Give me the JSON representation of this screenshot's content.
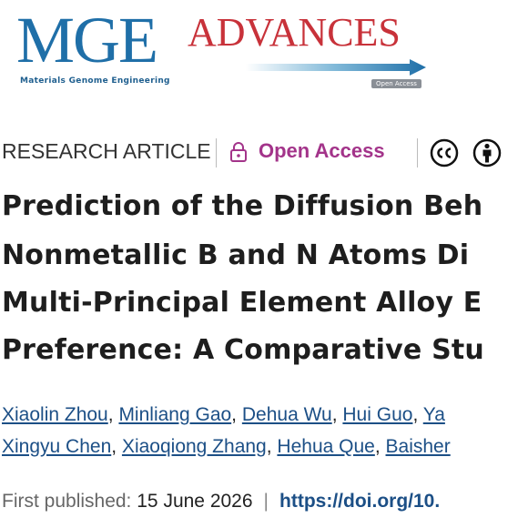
{
  "header": {
    "logo_main": "MGE",
    "logo_secondary": "ADVANCES",
    "logo_subtitle": "Materials Genome Engineering",
    "logo_badge": "Open Access"
  },
  "article": {
    "type": "RESEARCH ARTICLE",
    "access": "Open Access",
    "title_lines": [
      "Prediction of the Diffusion Beh",
      "Nonmetallic B and N Atoms Di",
      "Multi-Principal Element Alloy E",
      "Preference: A Comparative Stu"
    ],
    "author_separator": ",",
    "author_lines": [
      [
        "Xiaolin Zhou",
        "Minliang Gao",
        "Dehua Wu",
        "Hui Guo",
        "Ya"
      ],
      [
        "Xingyu Chen",
        "Xiaoqiong Zhang",
        "Hehua Que",
        "Baisher"
      ]
    ],
    "published_label": "First published:",
    "published_date": "15 June 2026",
    "published_separator": "|",
    "doi": "https://doi.org/10."
  }
}
